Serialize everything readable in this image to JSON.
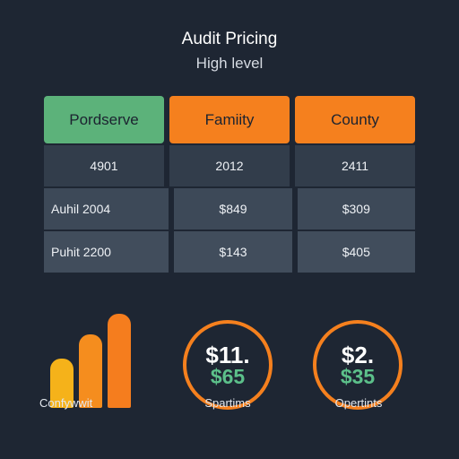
{
  "header": {
    "title": "Audit Pricing",
    "subtitle": "High level"
  },
  "table": {
    "columns": [
      {
        "label": "Pordserve",
        "color": "#5cb27a"
      },
      {
        "label": "Famiity",
        "color": "#f5801e"
      },
      {
        "label": "County",
        "color": "#f5801e"
      }
    ],
    "rows": [
      [
        "4901",
        "2012",
        "2411"
      ],
      [
        "Auhil 2004",
        "$849",
        "$309"
      ],
      [
        "Puhit 2200",
        "$143",
        "$405"
      ]
    ]
  },
  "bar_chart": {
    "label": "Confywwit",
    "bars": [
      {
        "value": 0.52,
        "color": "#f5b21a"
      },
      {
        "value": 0.78,
        "color": "#f58d1e"
      },
      {
        "value": 1.0,
        "color": "#f57d1e"
      }
    ]
  },
  "rings": [
    {
      "primary": "$11.",
      "secondary": "$65",
      "label": "Spartims"
    },
    {
      "primary": "$2.",
      "secondary": "$35",
      "label": "Opertints"
    }
  ]
}
